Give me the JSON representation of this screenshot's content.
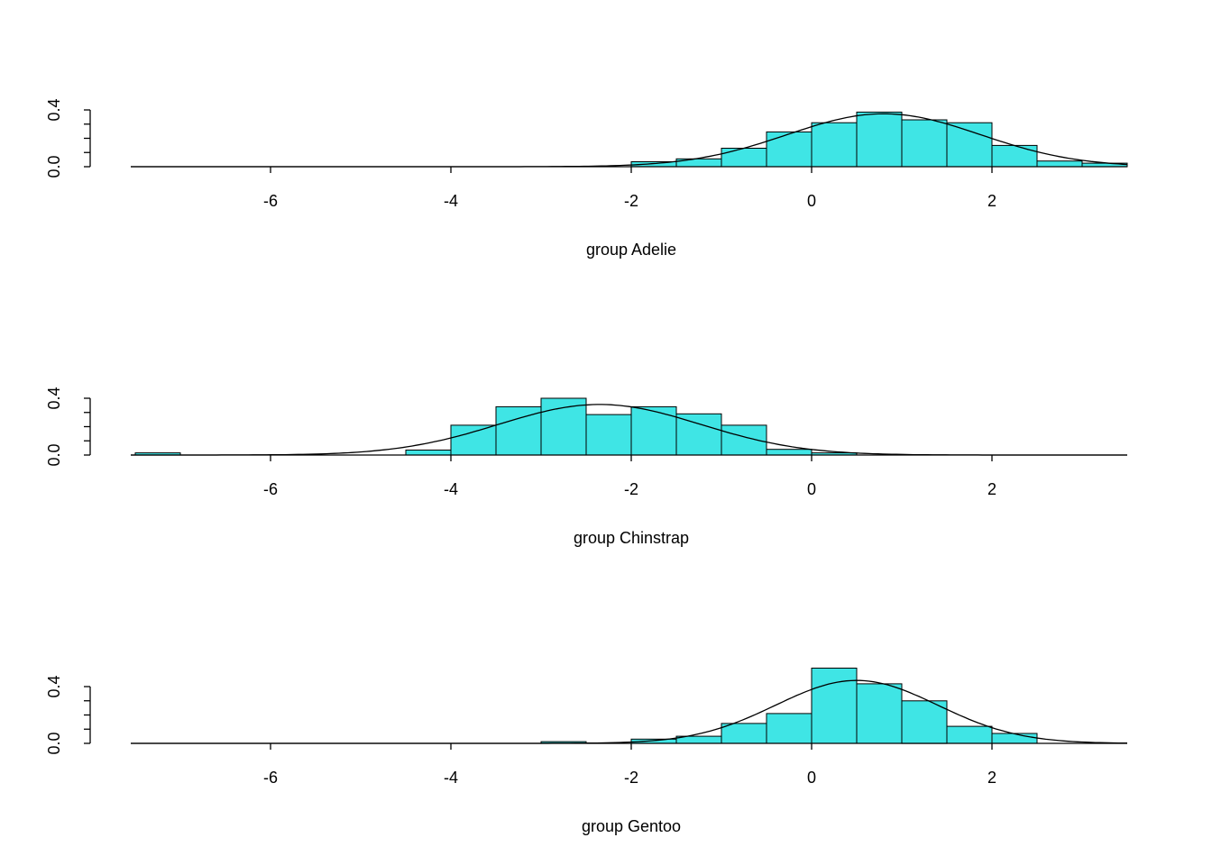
{
  "figure": {
    "background": "#ffffff",
    "axis_color": "#000000",
    "bar_fill": "#3FE5E5",
    "bar_stroke": "#000000",
    "curve_color": "#000000"
  },
  "chart_data": [
    {
      "type": "histogram",
      "xlabel": "group Adelie",
      "ylabel": "",
      "xlim": [
        -7.55,
        3.5
      ],
      "ylim": [
        0,
        0.55
      ],
      "x_ticks": [
        -6,
        -4,
        -2,
        0,
        2
      ],
      "y_ticks": [
        0,
        0.1,
        0.2,
        0.3,
        0.4
      ],
      "y_labeled_ticks": [
        0,
        0.4
      ],
      "grid": false,
      "legend": "none",
      "bin_width": 0.5,
      "bars": [
        {
          "x": -2.0,
          "h": 0.035
        },
        {
          "x": -1.5,
          "h": 0.055
        },
        {
          "x": -1.0,
          "h": 0.13
        },
        {
          "x": -0.5,
          "h": 0.245
        },
        {
          "x": 0.0,
          "h": 0.31
        },
        {
          "x": 0.5,
          "h": 0.385
        },
        {
          "x": 1.0,
          "h": 0.33
        },
        {
          "x": 1.5,
          "h": 0.31
        },
        {
          "x": 2.0,
          "h": 0.15
        },
        {
          "x": 2.5,
          "h": 0.04
        },
        {
          "x": 3.0,
          "h": 0.025
        }
      ],
      "density_curve": {
        "type": "normal",
        "mean": 0.8,
        "sd": 1.07
      }
    },
    {
      "type": "histogram",
      "xlabel": "group Chinstrap",
      "ylabel": "",
      "xlim": [
        -7.55,
        3.5
      ],
      "ylim": [
        0,
        0.55
      ],
      "x_ticks": [
        -6,
        -4,
        -2,
        0,
        2
      ],
      "y_ticks": [
        0,
        0.1,
        0.2,
        0.3,
        0.4
      ],
      "y_labeled_ticks": [
        0,
        0.4
      ],
      "grid": false,
      "legend": "none",
      "bin_width": 0.5,
      "bars": [
        {
          "x": -7.5,
          "h": 0.015
        },
        {
          "x": -4.5,
          "h": 0.035
        },
        {
          "x": -4.0,
          "h": 0.21
        },
        {
          "x": -3.5,
          "h": 0.34
        },
        {
          "x": -3.0,
          "h": 0.4
        },
        {
          "x": -2.5,
          "h": 0.285
        },
        {
          "x": -2.0,
          "h": 0.34
        },
        {
          "x": -1.5,
          "h": 0.29
        },
        {
          "x": -1.0,
          "h": 0.21
        },
        {
          "x": -0.5,
          "h": 0.04
        },
        {
          "x": 0.0,
          "h": 0.015
        }
      ],
      "density_curve": {
        "type": "normal",
        "mean": -2.35,
        "sd": 1.12
      }
    },
    {
      "type": "histogram",
      "xlabel": "group Gentoo",
      "ylabel": "",
      "xlim": [
        -7.55,
        3.5
      ],
      "ylim": [
        0,
        0.55
      ],
      "x_ticks": [
        -6,
        -4,
        -2,
        0,
        2
      ],
      "y_ticks": [
        0,
        0.1,
        0.2,
        0.3,
        0.4
      ],
      "y_labeled_ticks": [
        0,
        0.4
      ],
      "grid": false,
      "legend": "none",
      "bin_width": 0.5,
      "bars": [
        {
          "x": -3.0,
          "h": 0.012
        },
        {
          "x": -2.0,
          "h": 0.03
        },
        {
          "x": -1.5,
          "h": 0.05
        },
        {
          "x": -1.0,
          "h": 0.14
        },
        {
          "x": -0.5,
          "h": 0.21
        },
        {
          "x": 0.0,
          "h": 0.53
        },
        {
          "x": 0.5,
          "h": 0.42
        },
        {
          "x": 1.0,
          "h": 0.3
        },
        {
          "x": 1.5,
          "h": 0.12
        },
        {
          "x": 2.0,
          "h": 0.07
        }
      ],
      "density_curve": {
        "type": "normal",
        "mean": 0.5,
        "sd": 0.9
      }
    }
  ]
}
